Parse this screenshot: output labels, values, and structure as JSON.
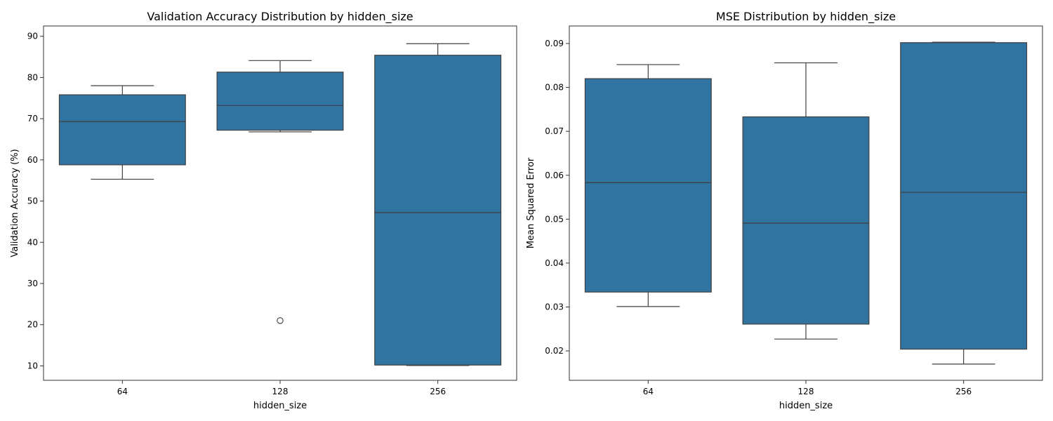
{
  "chart_data": [
    {
      "type": "box",
      "title": "Validation Accuracy Distribution by hidden_size",
      "xlabel": "hidden_size",
      "ylabel": "Validation Accuracy (%)",
      "ylim": [
        6.5,
        92.5
      ],
      "yticks": [
        10,
        20,
        30,
        40,
        50,
        60,
        70,
        80,
        90
      ],
      "categories": [
        "64",
        "128",
        "256"
      ],
      "boxes": [
        {
          "min": 55.3,
          "q1": 58.8,
          "median": 69.3,
          "q3": 75.8,
          "max": 78.0,
          "outliers": []
        },
        {
          "min": 66.8,
          "q1": 67.2,
          "median": 73.2,
          "q3": 81.3,
          "max": 84.1,
          "outliers": [
            21.0
          ]
        },
        {
          "min": 10.1,
          "q1": 10.2,
          "median": 47.2,
          "q3": 85.4,
          "max": 88.2,
          "outliers": []
        }
      ],
      "color": "#3274a1",
      "grid": false,
      "legend": "none"
    },
    {
      "type": "box",
      "title": "MSE Distribution by hidden_size",
      "xlabel": "hidden_size",
      "ylabel": "Mean Squared Error",
      "ylim": [
        0.0133,
        0.094
      ],
      "yticks": [
        0.02,
        0.03,
        0.04,
        0.05,
        0.06,
        0.07,
        0.08,
        0.09
      ],
      "categories": [
        "64",
        "128",
        "256"
      ],
      "boxes": [
        {
          "min": 0.0301,
          "q1": 0.0334,
          "median": 0.0583,
          "q3": 0.082,
          "max": 0.0852,
          "outliers": []
        },
        {
          "min": 0.0227,
          "q1": 0.0261,
          "median": 0.0491,
          "q3": 0.0733,
          "max": 0.0856,
          "outliers": []
        },
        {
          "min": 0.017,
          "q1": 0.0204,
          "median": 0.0561,
          "q3": 0.0902,
          "max": 0.0903,
          "outliers": []
        }
      ],
      "color": "#3274a1",
      "grid": false,
      "legend": "none"
    }
  ]
}
